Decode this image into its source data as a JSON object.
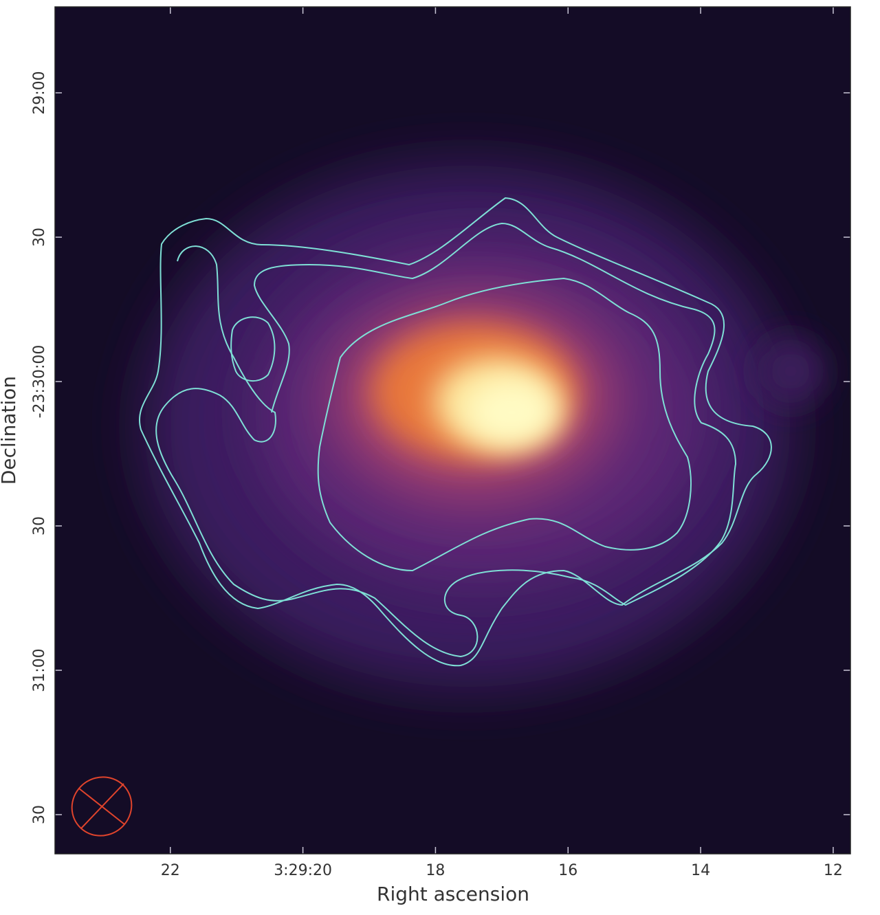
{
  "chart_data": {
    "type": "image",
    "xlabel": "Right ascension",
    "ylabel": "Declination",
    "xlim": [
      23.74,
      11.74
    ],
    "xticks": [
      22,
      {
        "value": 20,
        "label": "3:29:20"
      },
      18,
      16,
      14,
      12
    ],
    "ylim": [
      -1898.14,
      -1722.14
    ],
    "yticks": [
      {
        "value": -1740,
        "label": "29:00"
      },
      {
        "value": -1770,
        "label": "30"
      },
      {
        "value": -1800,
        "label": "-23:30:00"
      },
      {
        "value": -1830,
        "label": "30"
      },
      {
        "value": -1860,
        "label": "31:00"
      },
      {
        "value": -1890,
        "label": "30"
      }
    ],
    "tick_color": "#c9c6d6"
  }
}
